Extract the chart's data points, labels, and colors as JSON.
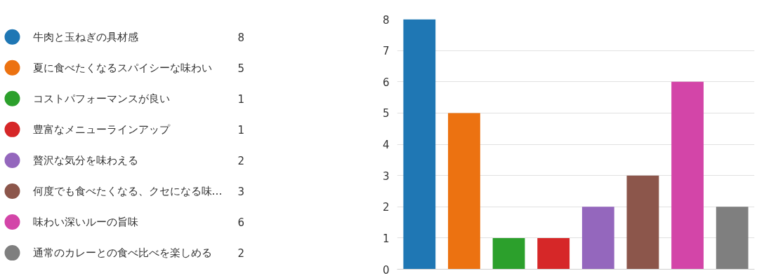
{
  "chart_data": {
    "type": "bar",
    "stacked": true,
    "categories": [
      null,
      null,
      null,
      null,
      null,
      null,
      null,
      null
    ],
    "series": [
      {
        "name": "牛肉と玉ねぎの具材感",
        "color": "#1f77b4",
        "values": [
          8,
          null,
          null,
          null,
          null,
          null,
          null,
          null
        ]
      },
      {
        "name": "夏に食べたくなるスパイシーな味わい",
        "color": "#ec7211",
        "values": [
          null,
          5,
          null,
          null,
          null,
          null,
          null,
          null
        ]
      },
      {
        "name": "コストパフォーマンスが良い",
        "color": "#2ca02c",
        "values": [
          null,
          null,
          1,
          null,
          null,
          null,
          null,
          null
        ]
      },
      {
        "name": "豊富なメニューラインアップ",
        "color": "#d62728",
        "values": [
          null,
          null,
          null,
          1,
          null,
          null,
          null,
          null
        ]
      },
      {
        "name": "贅沢な気分を味わえる",
        "color": "#9467bd",
        "values": [
          null,
          null,
          null,
          null,
          2,
          null,
          null,
          null
        ]
      },
      {
        "name": "何度でも食べたくなる、クセになる味…",
        "color": "#8c564b",
        "values": [
          null,
          null,
          null,
          null,
          null,
          3,
          null,
          null
        ]
      },
      {
        "name": "味わい深いルーの旨味",
        "color": "#d345a8",
        "values": [
          null,
          null,
          null,
          null,
          null,
          null,
          6,
          null
        ]
      },
      {
        "name": "通常のカレーとの食べ比べを楽しめる",
        "color": "#7f7f7f",
        "values": [
          null,
          null,
          null,
          null,
          null,
          null,
          null,
          2
        ]
      }
    ],
    "ylim": [
      0,
      8
    ],
    "yticks": [
      0,
      1,
      2,
      3,
      4,
      5,
      6,
      7,
      8
    ],
    "annotations": [
      "8",
      "5",
      "1",
      "1",
      "2",
      "3",
      "6",
      "2"
    ],
    "grid": "y",
    "legend": "left",
    "tick_labels": "y"
  }
}
